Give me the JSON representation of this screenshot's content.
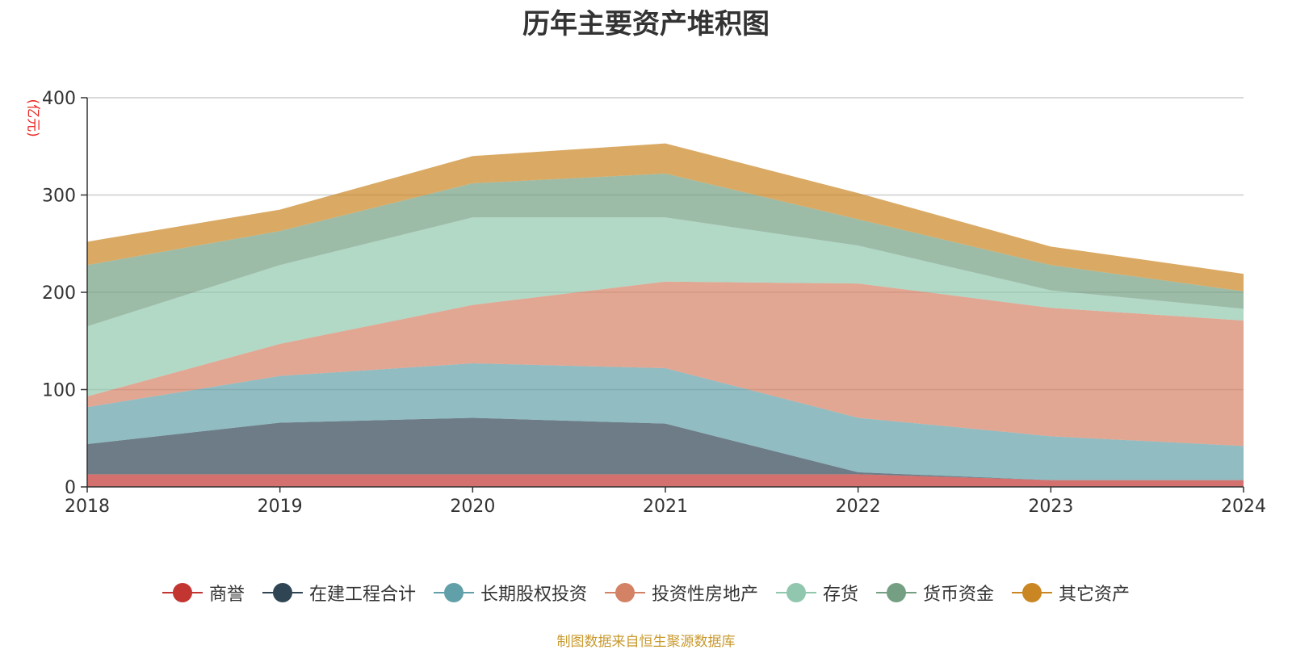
{
  "chart_data": {
    "type": "area",
    "stacked": true,
    "title": "历年主要资产堆积图",
    "ylabel": "(亿元)",
    "xlabel": "",
    "categories": [
      "2018",
      "2019",
      "2020",
      "2021",
      "2022",
      "2023",
      "2024"
    ],
    "ylim": [
      0,
      400
    ],
    "yticks": [
      0,
      100,
      200,
      300,
      400
    ],
    "grid": true,
    "legend_position": "bottom",
    "series": [
      {
        "name": "商誉",
        "color": "#c23531",
        "values": [
          13,
          13,
          13,
          13,
          13,
          7,
          7
        ]
      },
      {
        "name": "在建工程合计",
        "color": "#2f4554",
        "values": [
          31,
          53,
          58,
          52,
          2,
          0,
          0
        ]
      },
      {
        "name": "长期股权投资",
        "color": "#61a0a8",
        "values": [
          38,
          48,
          56,
          57,
          56,
          45,
          35
        ]
      },
      {
        "name": "投资性房地产",
        "color": "#d48265",
        "values": [
          11,
          33,
          60,
          89,
          138,
          132,
          129
        ]
      },
      {
        "name": "存货",
        "color": "#91c7ae",
        "values": [
          72,
          81,
          90,
          66,
          39,
          18,
          12
        ]
      },
      {
        "name": "货币资金",
        "color": "#749f83",
        "values": [
          63,
          35,
          35,
          45,
          27,
          26,
          18
        ]
      },
      {
        "name": "其它资产",
        "color": "#ca8622",
        "values": [
          24,
          22,
          28,
          31,
          27,
          19,
          18
        ]
      }
    ]
  },
  "footer": {
    "source": "制图数据来自恒生聚源数据库"
  }
}
